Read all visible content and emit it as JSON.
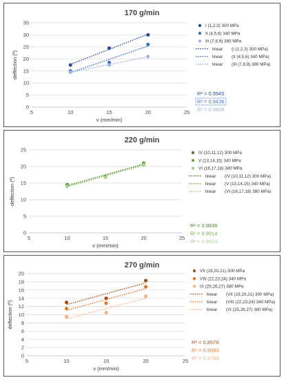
{
  "chart_data": [
    {
      "type": "scatter",
      "title": "170 g/min",
      "xlabel": "v (mm/min)",
      "ylabel": "deflection (º)",
      "xlim": [
        5,
        25
      ],
      "ylim": [
        0,
        35
      ],
      "xticks": [
        5,
        10,
        15,
        20,
        25
      ],
      "yticks": [
        0,
        5,
        10,
        15,
        20,
        25,
        30,
        35
      ],
      "grid": true,
      "legend_position": "right",
      "series": [
        {
          "name": "I (1,2,3) 300 MPa",
          "color": "#2e4f8f",
          "points": [
            [
              10,
              17.5
            ],
            [
              15,
              24.5
            ],
            [
              20,
              30
            ]
          ],
          "fit_label": "linear",
          "fit_name": "(I (1,2,3) 300 MPa)",
          "r2": "R² = 0.9945"
        },
        {
          "name": "II (4,5,6) 340 MPa",
          "color": "#3d6fc0",
          "points": [
            [
              10,
              15
            ],
            [
              15,
              18.5
            ],
            [
              20,
              26
            ]
          ],
          "fit_label": "linear",
          "fit_name": "(II (4,5,6) 340 MPa)",
          "r2": "R² = 0.9436"
        },
        {
          "name": "III (7,8,9) 380 MPa",
          "color": "#9fb4da",
          "points": [
            [
              10,
              14.5
            ],
            [
              15,
              17.5
            ],
            [
              20,
              21
            ]
          ],
          "fit_label": "linear",
          "fit_name": "(III (7,8,9) 380 MPa)",
          "r2": "R² = 0.9836"
        }
      ]
    },
    {
      "type": "scatter",
      "title": "220 g/min",
      "xlabel": "v (mm/min)",
      "ylabel": "deflection (º)",
      "xlim": [
        5,
        25
      ],
      "ylim": [
        0,
        25
      ],
      "xticks": [
        5,
        10,
        15,
        20,
        25
      ],
      "yticks": [
        0,
        5,
        10,
        15,
        20,
        25
      ],
      "grid": true,
      "legend_position": "right",
      "series": [
        {
          "name": "IV (10,11,12) 300 MPa",
          "color": "#4f7f2b",
          "points": [
            [
              10,
              14.5
            ],
            [
              15,
              17
            ],
            [
              20,
              21
            ]
          ],
          "fit_label": "linear",
          "fit_name": "(IV (10,11,12) 300 MPa)",
          "r2": "R² = 0.9836"
        },
        {
          "name": "V (13,14,15) 340 MPa",
          "color": "#72a83e",
          "points": [
            [
              10,
              14.3
            ],
            [
              15,
              17
            ],
            [
              20,
              20.8
            ]
          ],
          "fit_label": "linear",
          "fit_name": "(V (13,14,15) 340 MPa)",
          "r2": "R² = 0.9914"
        },
        {
          "name": "VI (16,17,18) 380 MPa",
          "color": "#a9d18e",
          "points": [
            [
              10,
              14
            ],
            [
              15,
              16.8
            ],
            [
              20,
              20.5
            ]
          ],
          "fit_label": "linear",
          "fit_name": "(VI (16,17,18) 380 MPa)",
          "r2": "R² = 0.9914"
        }
      ]
    },
    {
      "type": "scatter",
      "title": "270 g/min",
      "xlabel": "v (mm/min)",
      "ylabel": "deflection (º)",
      "xlim": [
        5,
        25
      ],
      "ylim": [
        0,
        20
      ],
      "xticks": [
        5,
        10,
        15,
        20,
        25
      ],
      "yticks": [
        0,
        2,
        4,
        6,
        8,
        10,
        12,
        14,
        16,
        18,
        20
      ],
      "grid": true,
      "legend_position": "right",
      "series": [
        {
          "name": "VII (19,20,21) 300 MPa",
          "color": "#a0521a",
          "points": [
            [
              10,
              13
            ],
            [
              15,
              14
            ],
            [
              20,
              18.3
            ]
          ],
          "fit_label": "linear",
          "fit_name": "(VII (19,20,21) 300 MPa)",
          "r2": "R² = 0.8976"
        },
        {
          "name": "VIII (22,23,24) 340 MPa",
          "color": "#e07a26",
          "points": [
            [
              10,
              11.5
            ],
            [
              15,
              12.8
            ],
            [
              20,
              16.8
            ]
          ],
          "fit_label": "linear",
          "fit_name": "(VIII (22,23,24) 340 MPa)",
          "r2": "R² = 0.9093"
        },
        {
          "name": "IX (25,26,27) 380 MPa",
          "color": "#f4b183",
          "points": [
            [
              10,
              9.5
            ],
            [
              15,
              10.5
            ],
            [
              20,
              14.5
            ]
          ],
          "fit_label": "linear",
          "fit_name": "(IX (25,26,27) 380 MPa)",
          "r2": "R² = 0.8799"
        }
      ]
    }
  ]
}
